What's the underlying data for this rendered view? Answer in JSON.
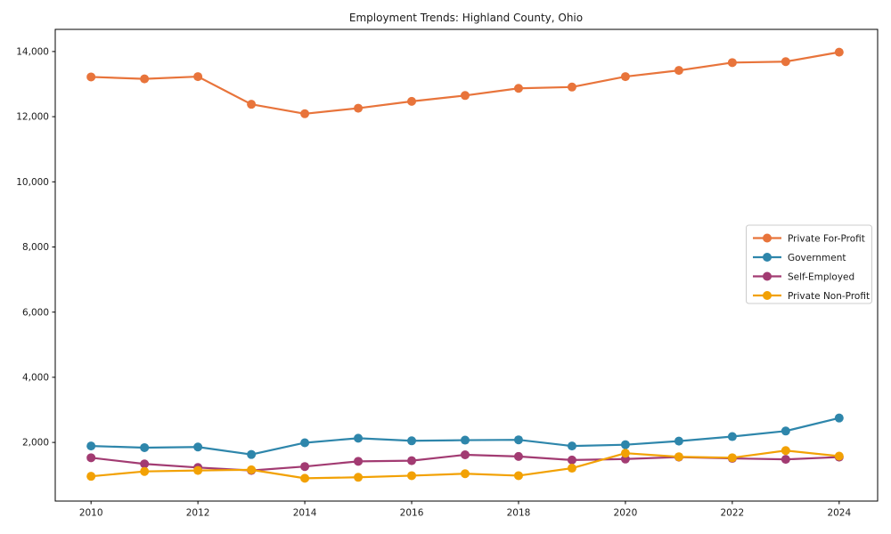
{
  "chart_data": {
    "type": "line",
    "title": "Employment Trends: Highland County, Ohio",
    "xlabel": "",
    "ylabel": "",
    "grid": false,
    "legend_position": "center right",
    "x": [
      2010,
      2011,
      2012,
      2013,
      2014,
      2015,
      2016,
      2017,
      2018,
      2019,
      2020,
      2021,
      2022,
      2023,
      2024
    ],
    "series": [
      {
        "name": "Private For-Profit",
        "color": "#E8743B",
        "values": [
          13220,
          13160,
          13230,
          12380,
          12090,
          12260,
          12470,
          12650,
          12870,
          12910,
          13230,
          13420,
          13660,
          13690,
          13980
        ]
      },
      {
        "name": "Government",
        "color": "#2E86AB",
        "values": [
          1890,
          1840,
          1860,
          1630,
          1990,
          2130,
          2050,
          2070,
          2080,
          1890,
          1930,
          2040,
          2180,
          2350,
          2750
        ]
      },
      {
        "name": "Self-Employed",
        "color": "#A23B72",
        "values": [
          1530,
          1340,
          1230,
          1140,
          1260,
          1420,
          1440,
          1620,
          1570,
          1460,
          1490,
          1550,
          1510,
          1480,
          1550
        ]
      },
      {
        "name": "Private Non-Profit",
        "color": "#F2A104",
        "values": [
          960,
          1110,
          1140,
          1160,
          900,
          930,
          980,
          1040,
          980,
          1210,
          1670,
          1560,
          1530,
          1750,
          1580
        ]
      }
    ],
    "xticks": [
      2010,
      2012,
      2014,
      2016,
      2018,
      2020,
      2022,
      2024
    ],
    "xtick_labels": [
      "2010",
      "2012",
      "2014",
      "2016",
      "2018",
      "2020",
      "2022",
      "2024"
    ],
    "yticks": [
      2000,
      4000,
      6000,
      8000,
      10000,
      12000,
      14000
    ],
    "ytick_labels": [
      "2,000",
      "4,000",
      "6,000",
      "8,000",
      "10,000",
      "12,000",
      "14,000"
    ],
    "xlim": [
      2009.33,
      2024.72
    ],
    "ylim": [
      200,
      14680
    ],
    "axis_color": "#000000",
    "legend_border_color": "#cccccc",
    "legend_background": "#ffffff"
  }
}
